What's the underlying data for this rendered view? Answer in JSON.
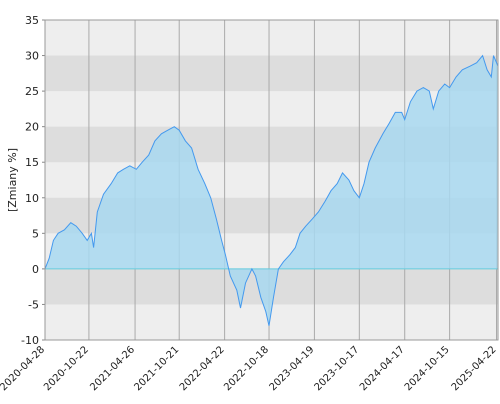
{
  "chart_data": {
    "type": "area",
    "y_label": "[Zmiany %]",
    "x": [
      "2020-04-28",
      "2020-05-15",
      "2020-06-01",
      "2020-06-20",
      "2020-07-15",
      "2020-08-10",
      "2020-09-01",
      "2020-09-25",
      "2020-10-15",
      "2020-11-01",
      "2020-11-10",
      "2020-11-25",
      "2020-12-20",
      "2021-01-20",
      "2021-02-15",
      "2021-03-10",
      "2021-04-05",
      "2021-05-01",
      "2021-05-25",
      "2021-06-20",
      "2021-07-15",
      "2021-08-10",
      "2021-09-05",
      "2021-10-01",
      "2021-10-21",
      "2021-11-15",
      "2021-12-10",
      "2022-01-05",
      "2022-02-01",
      "2022-02-25",
      "2022-03-20",
      "2022-04-10",
      "2022-04-25",
      "2022-05-15",
      "2022-06-10",
      "2022-06-25",
      "2022-07-15",
      "2022-08-10",
      "2022-08-25",
      "2022-09-15",
      "2022-10-05",
      "2022-10-18",
      "2022-11-05",
      "2022-11-25",
      "2022-12-15",
      "2023-01-10",
      "2023-02-01",
      "2023-02-20",
      "2023-03-15",
      "2023-04-10",
      "2023-05-05",
      "2023-06-01",
      "2023-06-25",
      "2023-07-20",
      "2023-08-10",
      "2023-09-05",
      "2023-09-25",
      "2023-10-17",
      "2023-11-05",
      "2023-11-25",
      "2023-12-20",
      "2024-01-20",
      "2024-02-15",
      "2024-03-10",
      "2024-04-05",
      "2024-04-17",
      "2024-05-10",
      "2024-06-05",
      "2024-07-01",
      "2024-07-25",
      "2024-08-10",
      "2024-09-01",
      "2024-09-25",
      "2024-10-15",
      "2024-11-10",
      "2024-12-05",
      "2025-01-05",
      "2025-02-01",
      "2025-02-25",
      "2025-03-15",
      "2025-04-01",
      "2025-04-10",
      "2025-04-28"
    ],
    "series": [
      {
        "color": "#4499ee",
        "values": [
          0,
          1.5,
          4,
          5,
          5.5,
          6.5,
          6,
          5,
          4,
          5,
          3,
          8,
          10.5,
          12,
          13.5,
          14,
          14.5,
          14,
          15,
          16,
          18,
          19,
          19.5,
          20,
          19.5,
          18,
          17,
          14,
          12,
          10,
          7,
          4,
          2,
          -1,
          -3,
          -5.5,
          -2,
          0,
          -1,
          -4,
          -6,
          -8,
          -4,
          0,
          1,
          2,
          3,
          5,
          6,
          7,
          8,
          9.5,
          11,
          12,
          13.5,
          12.5,
          11,
          10,
          12,
          15,
          17,
          19,
          20.5,
          22,
          22,
          21,
          23.5,
          25,
          25.5,
          25,
          22.5,
          25,
          26,
          25.5,
          27,
          28,
          28.5,
          29,
          30,
          28,
          27,
          30,
          28.5
        ]
      }
    ],
    "xlim": [
      "2020-04-28",
      "2025-04-28"
    ],
    "xticks": [
      "2020-04-28",
      "2020-10-22",
      "2021-04-26",
      "2021-10-21",
      "2022-04-22",
      "2022-10-18",
      "2023-04-19",
      "2023-10-17",
      "2024-04-17",
      "2024-10-15",
      "2025-04-22"
    ],
    "ylim": [
      -10,
      35
    ],
    "yticks": [
      -10,
      -5,
      0,
      5,
      10,
      15,
      20,
      25,
      30,
      35
    ],
    "grid": true
  }
}
